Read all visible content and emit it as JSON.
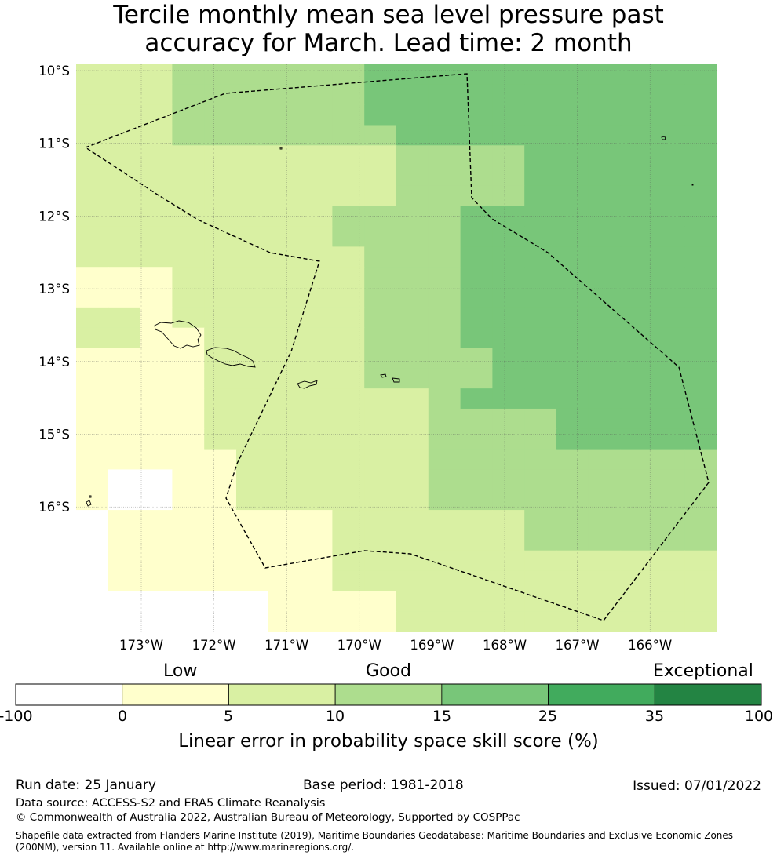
{
  "title_line1": "Tercile monthly mean sea level pressure past",
  "title_line2": "accuracy for March. Lead time: 2 month",
  "colors": {
    "c0": "#ffffff",
    "c1": "#ffffcc",
    "c2": "#d9f0a3",
    "c3": "#addd8e",
    "c4": "#78c679",
    "c5": "#41ab5d",
    "c6": "#238443"
  },
  "map": {
    "lon_labels": [
      "173°W",
      "172°W",
      "171°W",
      "170°W",
      "169°W",
      "168°W",
      "167°W",
      "166°W"
    ],
    "lat_labels": [
      "10°S",
      "11°S",
      "12°S",
      "13°S",
      "14°S",
      "15°S",
      "16°S"
    ],
    "lon_values": [
      -173,
      -172,
      -171,
      -170,
      -169,
      -168,
      -167,
      -166
    ],
    "lat_values": [
      -10,
      -11,
      -12,
      -13,
      -14,
      -15,
      -16
    ],
    "grid_rows": [
      "22233333344444444444",
      "22233333344444444444",
      "22233333344444444444",
      "22233333334444444444",
      "22222222223333444444",
      "22222222223333444444",
      "22222222223333444444",
      "22222222333344444444",
      "22222222333344444444",
      "22222222233344444444",
      "11122222233344444444",
      "11122222233344444444",
      "22122222233344444444",
      "22112222233344444444",
      "11112222233334444444",
      "11112222233334444444",
      "11112222222344444444",
      "11112222222333344444",
      "11112222222333344444",
      "11111222222333333333",
      "10011222222333333333",
      "10011222222333333333",
      "01111111222222333333",
      "01111111222222333333",
      "01111111222222222222",
      "01111111222222222222",
      "00000011112222222222",
      "00000011112222222222"
    ]
  },
  "colorbar": {
    "tiers": [
      "Low",
      "Good",
      "Exceptional"
    ],
    "ticks": [
      "-100",
      "0",
      "5",
      "10",
      "15",
      "25",
      "35",
      "100"
    ],
    "label": "Linear error in probability space skill score (%)"
  },
  "footer": {
    "run_date": "Run date: 25 January",
    "base_period": "Base period: 1981-2018",
    "issued": "Issued: 07/01/2022",
    "data_source": "Data source: ACCESS-S2 and ERA5 Climate Reanalysis",
    "copyright": "© Commonwealth of Australia 2022, Australian Bureau of Meteorology, Supported by COSPPac",
    "shapefile_line1": "Shapefile data extracted from Flanders Marine Institute (2019), Maritime Boundaries Geodatabase: Maritime Boundaries and Exclusive Economic Zones",
    "shapefile_line2": "(200NM), version 11. Available online at http://www.marineregions.org/."
  }
}
